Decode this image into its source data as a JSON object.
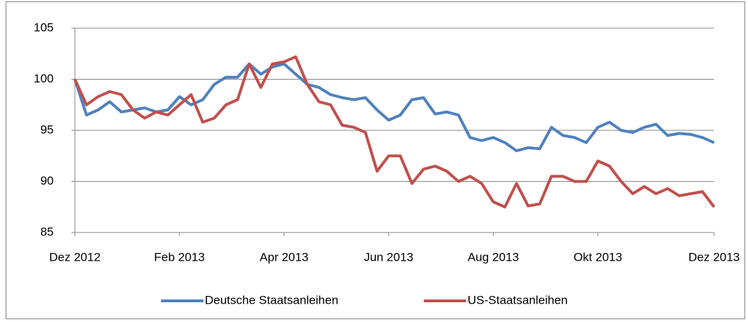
{
  "chart_data": {
    "type": "line",
    "categories": [
      "Dez 2012",
      null,
      null,
      null,
      null,
      null,
      null,
      null,
      null,
      "Feb 2013",
      null,
      null,
      null,
      null,
      null,
      null,
      null,
      null,
      "Apr 2013",
      null,
      null,
      null,
      null,
      null,
      null,
      null,
      null,
      "Jun 2013",
      null,
      null,
      null,
      null,
      null,
      null,
      null,
      null,
      "Aug 2013",
      null,
      null,
      null,
      null,
      null,
      null,
      null,
      null,
      "Okt 2013",
      null,
      null,
      null,
      null,
      null,
      null,
      null,
      null,
      null,
      "Dez 2013"
    ],
    "series": [
      {
        "name": "Deutsche Staatsanleihen",
        "color": "#4f81bd",
        "values": [
          100,
          96.5,
          97,
          97.8,
          96.8,
          97,
          97.2,
          96.8,
          97,
          98.3,
          97.5,
          98,
          99.5,
          100.2,
          100.2,
          101.5,
          100.5,
          101.2,
          101.5,
          100.5,
          99.5,
          99.2,
          98.5,
          98.2,
          98,
          98.2,
          97,
          96,
          96.5,
          98,
          98.2,
          96.6,
          96.8,
          96.5,
          94.3,
          94,
          94.3,
          93.8,
          93,
          93.3,
          93.2,
          95.3,
          94.5,
          94.3,
          93.8,
          95.3,
          95.8,
          95,
          94.8,
          95.3,
          95.6,
          94.5,
          94.7,
          94.6,
          94.3,
          93.8
        ]
      },
      {
        "name": "US-Staatsanleihen",
        "color": "#c0504d",
        "values": [
          100,
          97.5,
          98.3,
          98.8,
          98.5,
          97,
          96.2,
          96.8,
          96.5,
          97.5,
          98.5,
          95.8,
          96.2,
          97.5,
          98,
          101.5,
          99.2,
          101.5,
          101.7,
          102.2,
          99.5,
          97.8,
          97.5,
          95.5,
          95.3,
          94.8,
          91,
          92.5,
          92.5,
          89.8,
          91.2,
          91.5,
          91,
          90,
          90.5,
          89.8,
          88,
          87.5,
          89.8,
          87.6,
          87.8,
          90.5,
          90.5,
          90,
          90,
          92,
          91.5,
          90,
          88.8,
          89.5,
          88.8,
          89.3,
          88.6,
          88.8,
          89,
          87.5
        ]
      }
    ],
    "ylim": [
      85,
      105
    ],
    "yticks": [
      85,
      90,
      95,
      100,
      105
    ],
    "grid": true,
    "legend": "bottom"
  }
}
